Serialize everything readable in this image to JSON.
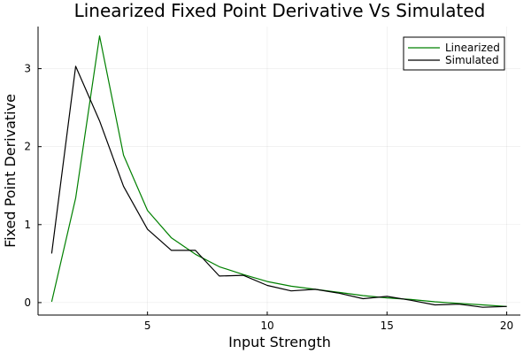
{
  "chart_data": {
    "type": "line",
    "title": "Linearized Fixed Point Derivative Vs Simulated",
    "xlabel": "Input Strength",
    "ylabel": "Fixed Point Derivative",
    "xlim": [
      0.43,
      20.57
    ],
    "ylim": [
      -0.16,
      3.54
    ],
    "x_ticks": [
      5,
      10,
      15,
      20
    ],
    "y_ticks": [
      0,
      1,
      2,
      3
    ],
    "grid": true,
    "legend_position": "top-right",
    "x": [
      1,
      2,
      3,
      4,
      5,
      6,
      7,
      8,
      9,
      10,
      11,
      12,
      13,
      14,
      15,
      16,
      17,
      18,
      19,
      20
    ],
    "series": [
      {
        "name": "Linearized",
        "color": "#008000",
        "values": [
          0.01,
          1.34,
          3.42,
          1.89,
          1.18,
          0.83,
          0.62,
          0.46,
          0.36,
          0.27,
          0.21,
          0.17,
          0.13,
          0.09,
          0.06,
          0.04,
          0.01,
          -0.01,
          -0.03,
          -0.05
        ]
      },
      {
        "name": "Simulated",
        "color": "#000000",
        "values": [
          0.63,
          3.03,
          2.33,
          1.49,
          0.94,
          0.67,
          0.67,
          0.34,
          0.35,
          0.22,
          0.15,
          0.17,
          0.12,
          0.05,
          0.08,
          0.03,
          -0.03,
          -0.02,
          -0.06,
          -0.05
        ]
      }
    ]
  }
}
